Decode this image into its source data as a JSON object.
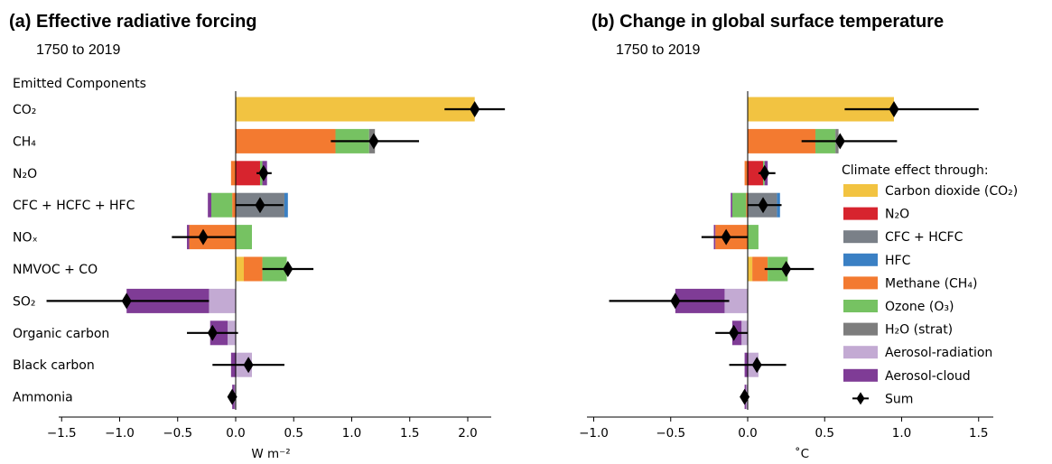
{
  "chart_data": [
    {
      "type": "bar",
      "orientation": "horizontal",
      "stacked": true,
      "title": "(a) Effective radiative forcing",
      "subtitle": "1750 to 2019",
      "group_label": "Emitted Components",
      "xlabel": "W m⁻²",
      "xlim": [
        -1.5,
        2.2
      ],
      "xticks": [
        "−1.5",
        "−1.0",
        "−0.5",
        "0.0",
        "0.5",
        "1.0",
        "1.5",
        "2.0"
      ],
      "xtick_values": [
        -1.5,
        -1.0,
        -0.5,
        0.0,
        0.5,
        1.0,
        1.5,
        2.0
      ],
      "categories": [
        "CO₂",
        "CH₄",
        "N₂O",
        "CFC + HCFC + HFC",
        "NOₓ",
        "NMVOC + CO",
        "SO₂",
        "Organic carbon",
        "Black carbon",
        "Ammonia"
      ],
      "series": [
        {
          "name": "Carbon dioxide (CO₂)",
          "values": [
            2.06,
            0,
            0,
            0,
            0,
            0.07,
            0,
            0,
            0,
            0
          ]
        },
        {
          "name": "N₂O",
          "values": [
            0,
            0,
            0.21,
            0,
            0,
            0,
            0,
            0,
            0,
            0
          ]
        },
        {
          "name": "CFC + HCFC",
          "values": [
            0,
            0,
            0,
            0.42,
            0,
            0,
            0,
            0,
            0,
            0
          ]
        },
        {
          "name": "HFC",
          "values": [
            0,
            0,
            0,
            0.03,
            0,
            0,
            0,
            0,
            0,
            0
          ]
        },
        {
          "name": "Methane (CH₄)",
          "values": [
            0,
            0.86,
            -0.04,
            -0.03,
            -0.4,
            0.16,
            0,
            0,
            0,
            0
          ]
        },
        {
          "name": "Ozone (O₃)",
          "values": [
            0,
            0.29,
            0.02,
            -0.18,
            0.14,
            0.21,
            0,
            0,
            0,
            0
          ]
        },
        {
          "name": "H₂O (strat)",
          "values": [
            0,
            0.05,
            0,
            0,
            0,
            0,
            0,
            0,
            0,
            0
          ]
        },
        {
          "name": "Aerosol-radiation",
          "values": [
            0,
            0,
            0,
            0,
            0,
            0,
            -0.23,
            -0.07,
            0.14,
            -0.01
          ]
        },
        {
          "name": "Aerosol-cloud",
          "values": [
            0,
            0,
            0.04,
            -0.03,
            -0.02,
            0,
            -0.71,
            -0.15,
            -0.04,
            -0.02
          ]
        }
      ],
      "sum": {
        "values": [
          2.06,
          1.19,
          0.24,
          0.21,
          -0.28,
          0.45,
          -0.94,
          -0.2,
          0.11,
          -0.03
        ],
        "error_low": [
          1.8,
          0.82,
          0.18,
          0.0,
          -0.55,
          0.23,
          -1.63,
          -0.42,
          -0.2,
          -0.06
        ],
        "error_high": [
          2.32,
          1.58,
          0.31,
          0.41,
          0.0,
          0.67,
          -0.23,
          0.02,
          0.42,
          -0.01
        ]
      }
    },
    {
      "type": "bar",
      "orientation": "horizontal",
      "stacked": true,
      "title": "(b) Change in global surface temperature",
      "subtitle": "1750 to 2019",
      "xlabel": "˚C",
      "xlim": [
        -1.03,
        1.6
      ],
      "xticks": [
        "−1.0",
        "−0.5",
        "0.0",
        "0.5",
        "1.0",
        "1.5"
      ],
      "xtick_values": [
        -1.0,
        -0.5,
        0.0,
        0.5,
        1.0,
        1.5
      ],
      "categories": [
        "CO₂",
        "CH₄",
        "N₂O",
        "CFC + HCFC + HFC",
        "NOₓ",
        "NMVOC + CO",
        "SO₂",
        "Organic carbon",
        "Black carbon",
        "Ammonia"
      ],
      "series": [
        {
          "name": "Carbon dioxide (CO₂)",
          "values": [
            0.95,
            0,
            0,
            0,
            0,
            0.03,
            0,
            0,
            0,
            0
          ]
        },
        {
          "name": "N₂O",
          "values": [
            0,
            0,
            0.1,
            0,
            0,
            0,
            0,
            0,
            0,
            0
          ]
        },
        {
          "name": "CFC + HCFC",
          "values": [
            0,
            0,
            0,
            0.19,
            0,
            0,
            0,
            0,
            0,
            0
          ]
        },
        {
          "name": "HFC",
          "values": [
            0,
            0,
            0,
            0.02,
            0,
            0,
            0,
            0,
            0,
            0
          ]
        },
        {
          "name": "Methane (CH₄)",
          "values": [
            0,
            0.44,
            -0.02,
            -0.01,
            -0.21,
            0.1,
            0,
            0,
            0,
            0
          ]
        },
        {
          "name": "Ozone (O₃)",
          "values": [
            0,
            0.13,
            0.01,
            -0.09,
            0.07,
            0.13,
            0,
            0,
            0,
            0
          ]
        },
        {
          "name": "H₂O (strat)",
          "values": [
            0,
            0.02,
            0,
            0,
            0,
            0,
            0,
            0,
            0,
            0
          ]
        },
        {
          "name": "Aerosol-radiation",
          "values": [
            0,
            0,
            0,
            0,
            0,
            0,
            -0.15,
            -0.04,
            0.07,
            -0.01
          ]
        },
        {
          "name": "Aerosol-cloud",
          "values": [
            0,
            0,
            0.02,
            -0.01,
            -0.01,
            0,
            -0.32,
            -0.06,
            -0.02,
            -0.01
          ]
        }
      ],
      "sum": {
        "values": [
          0.95,
          0.6,
          0.11,
          0.1,
          -0.14,
          0.25,
          -0.47,
          -0.09,
          0.06,
          -0.02
        ],
        "error_low": [
          0.63,
          0.35,
          0.07,
          0.0,
          -0.3,
          0.11,
          -0.9,
          -0.21,
          -0.12,
          -0.03
        ],
        "error_high": [
          1.5,
          0.97,
          0.18,
          0.22,
          0.0,
          0.43,
          -0.12,
          0.0,
          0.25,
          -0.01
        ]
      }
    }
  ],
  "legend": {
    "title": "Climate effect through:",
    "items": [
      {
        "label": "Carbon dioxide (CO₂)",
        "color": "#f2c341"
      },
      {
        "label": "N₂O",
        "color": "#d7242e"
      },
      {
        "label": "CFC + HCFC",
        "color": "#7a8088"
      },
      {
        "label": "HFC",
        "color": "#3a80c4"
      },
      {
        "label": "Methane (CH₄)",
        "color": "#f37a30"
      },
      {
        "label": "Ozone (O₃)",
        "color": "#76c262"
      },
      {
        "label": "H₂O (strat)",
        "color": "#7d7d7d"
      },
      {
        "label": "Aerosol-radiation",
        "color": "#c3aad3"
      },
      {
        "label": "Aerosol-cloud",
        "color": "#7f3c96"
      },
      {
        "label": "Sum",
        "marker": "diamond"
      }
    ]
  }
}
